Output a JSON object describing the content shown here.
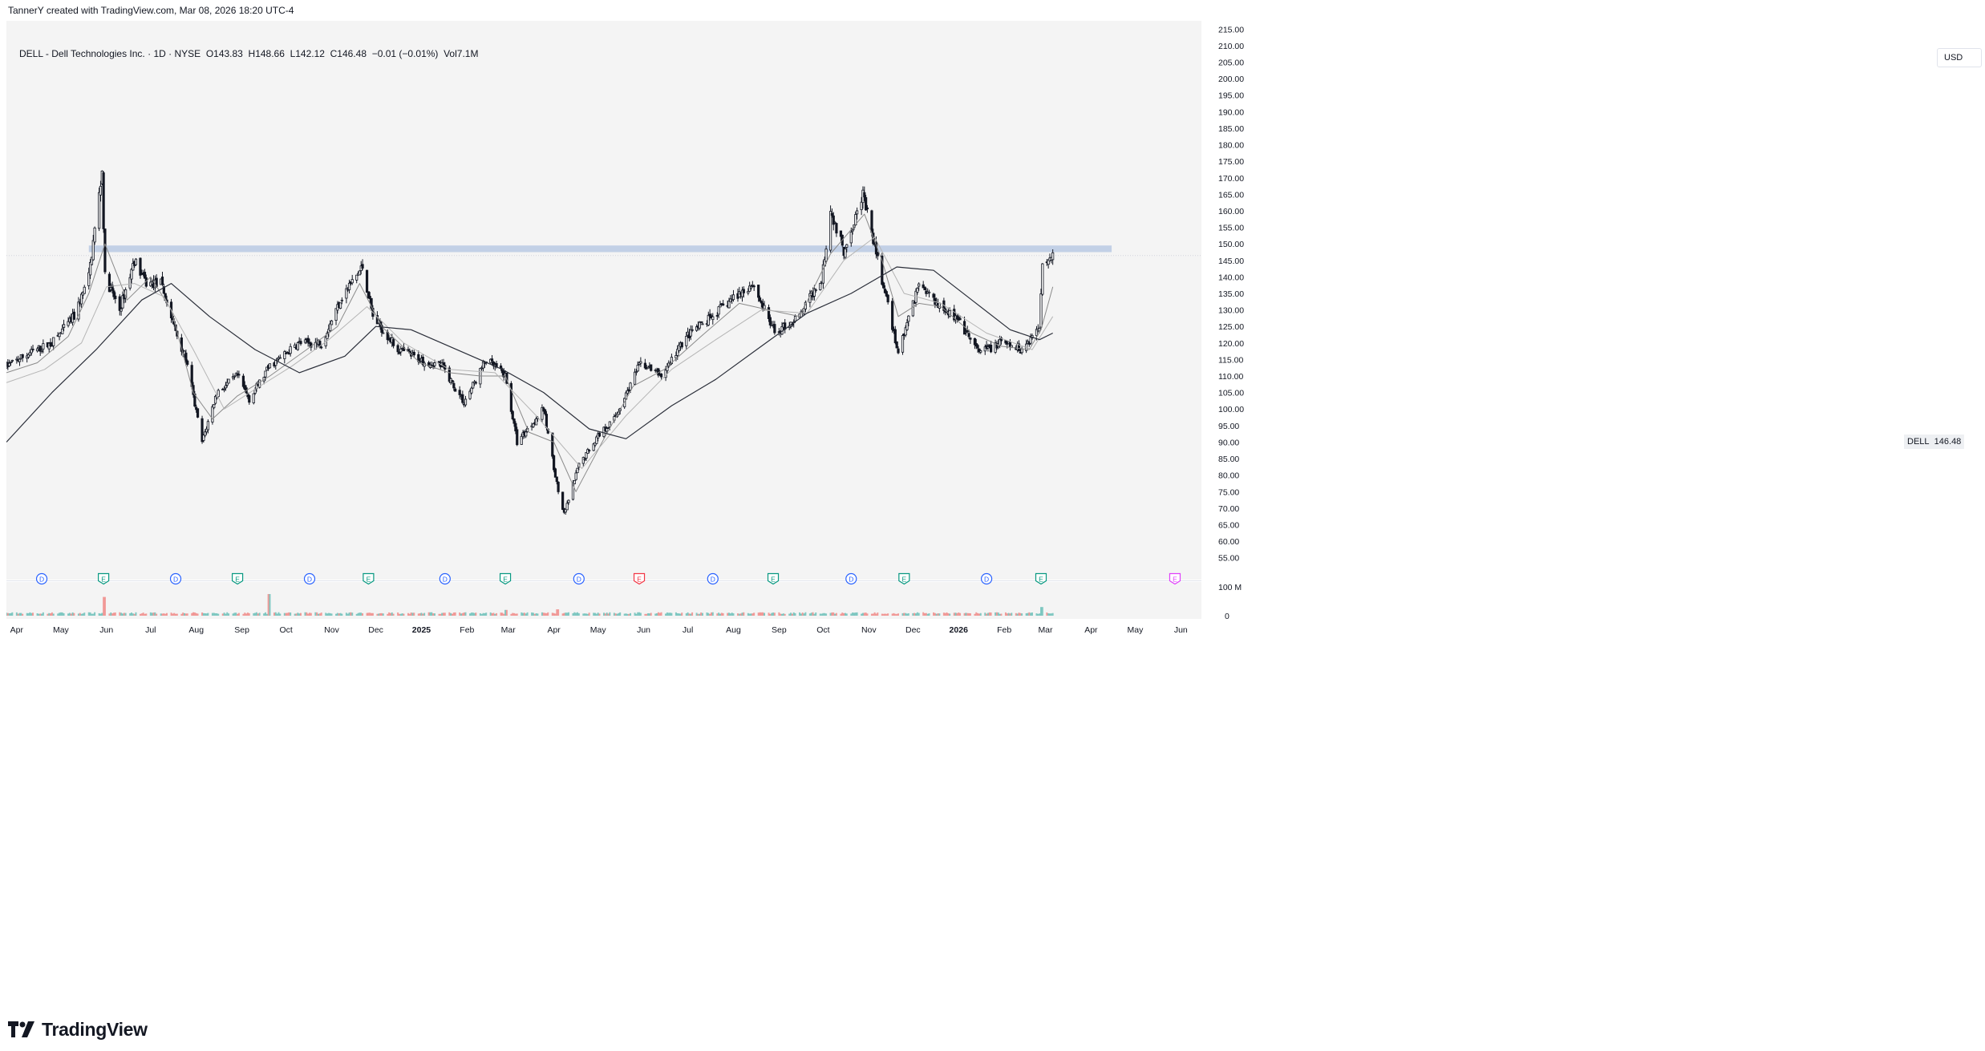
{
  "header": {
    "credit": "TannerY created with TradingView.com, Mar 08, 2026 18:20 UTC-4"
  },
  "legend": {
    "symbol": "DELL",
    "name": "Dell Technologies Inc.",
    "interval": "1D",
    "exchange": "NYSE",
    "open": "O143.83",
    "high": "H148.66",
    "low": "L142.12",
    "close": "C146.48",
    "change": "−0.01 (−0.01%)",
    "volume": "Vol7.1M",
    "separator": " · ",
    "dash": " - "
  },
  "price_axis": {
    "currency": "USD",
    "last_symbol": "DELL",
    "last_price": "146.48"
  },
  "volume_axis": {
    "top_label": "100 M",
    "bottom_label": "0"
  },
  "brand": {
    "name": "TradingView",
    "icon": "tradingview-logo-icon"
  },
  "colors": {
    "background": "#f4f4f4",
    "candle": "#131722",
    "ma_fast": "#8a8a8a",
    "ma_mid": "#b5b5b5",
    "ma_slow": "#2a2e39",
    "resistance_band": "#b8c9e3",
    "dividend": "#2962ff",
    "earnings": "#089981",
    "earnings_miss": "#f23645",
    "earnings_future": "#e040fb"
  },
  "chart_data": {
    "type": "candlestick",
    "title": "DELL · Dell Technologies Inc. · 1D · NYSE",
    "x_ticks": [
      "Apr",
      "May",
      "Jun",
      "Jul",
      "Aug",
      "Sep",
      "Oct",
      "Nov",
      "Dec",
      "2025",
      "Feb",
      "Mar",
      "Apr",
      "May",
      "Jun",
      "Jul",
      "Aug",
      "Sep",
      "Oct",
      "Nov",
      "Dec",
      "2026",
      "Feb",
      "Mar",
      "Apr",
      "May",
      "Jun"
    ],
    "y_ticks": [
      "55.00",
      "60.00",
      "65.00",
      "70.00",
      "75.00",
      "80.00",
      "85.00",
      "90.00",
      "95.00",
      "100.00",
      "105.00",
      "110.00",
      "115.00",
      "120.00",
      "125.00",
      "130.00",
      "135.00",
      "140.00",
      "145.00",
      "150.00",
      "155.00",
      "160.00",
      "165.00",
      "170.00",
      "175.00",
      "180.00",
      "185.00",
      "190.00",
      "195.00",
      "200.00",
      "205.00",
      "210.00",
      "215.00"
    ],
    "ylim": [
      52.5,
      217.5
    ],
    "x_range": [
      "2024-03-25",
      "2026-06-15"
    ],
    "resistance_zone": [
      147.5,
      149.5
    ],
    "series": [
      {
        "name": "DELL",
        "approx_price_path": [
          [
            "2024-03-25",
            113
          ],
          [
            "2024-04-10",
            117
          ],
          [
            "2024-04-25",
            120
          ],
          [
            "2024-05-10",
            128
          ],
          [
            "2024-05-20",
            140
          ],
          [
            "2024-05-29",
            172
          ],
          [
            "2024-05-31",
            140
          ],
          [
            "2024-06-10",
            130
          ],
          [
            "2024-06-20",
            145
          ],
          [
            "2024-06-28",
            138
          ],
          [
            "2024-07-08",
            138
          ],
          [
            "2024-07-17",
            125
          ],
          [
            "2024-07-25",
            115
          ],
          [
            "2024-08-05",
            90
          ],
          [
            "2024-08-15",
            105
          ],
          [
            "2024-08-29",
            110
          ],
          [
            "2024-09-06",
            103
          ],
          [
            "2024-09-20",
            113
          ],
          [
            "2024-10-10",
            120
          ],
          [
            "2024-10-25",
            120
          ],
          [
            "2024-11-08",
            134
          ],
          [
            "2024-11-22",
            143
          ],
          [
            "2024-11-29",
            128
          ],
          [
            "2024-12-16",
            118
          ],
          [
            "2024-12-31",
            115
          ],
          [
            "2025-01-15",
            113
          ],
          [
            "2025-01-30",
            102
          ],
          [
            "2025-02-14",
            115
          ],
          [
            "2025-02-27",
            110
          ],
          [
            "2025-03-07",
            90
          ],
          [
            "2025-03-25",
            100
          ],
          [
            "2025-04-04",
            75
          ],
          [
            "2025-04-08",
            68
          ],
          [
            "2025-04-18",
            83
          ],
          [
            "2025-05-01",
            92
          ],
          [
            "2025-05-12",
            97
          ],
          [
            "2025-05-30",
            114
          ],
          [
            "2025-06-13",
            110
          ],
          [
            "2025-06-30",
            122
          ],
          [
            "2025-07-15",
            127
          ],
          [
            "2025-07-30",
            133
          ],
          [
            "2025-08-14",
            138
          ],
          [
            "2025-08-29",
            123
          ],
          [
            "2025-09-15",
            128
          ],
          [
            "2025-09-30",
            140
          ],
          [
            "2025-10-06",
            160
          ],
          [
            "2025-10-15",
            148
          ],
          [
            "2025-10-28",
            165
          ],
          [
            "2025-11-07",
            145
          ],
          [
            "2025-11-21",
            117
          ],
          [
            "2025-12-05",
            138
          ],
          [
            "2025-12-16",
            133
          ],
          [
            "2025-12-31",
            127
          ],
          [
            "2026-01-15",
            117
          ],
          [
            "2026-01-30",
            120
          ],
          [
            "2026-02-13",
            118
          ],
          [
            "2026-02-25",
            125
          ],
          [
            "2026-02-27",
            145
          ],
          [
            "2026-03-06",
            146.48
          ]
        ]
      }
    ],
    "moving_averages": [
      {
        "approx_path": [
          [
            "2024-03-25",
            111
          ],
          [
            "2024-04-15",
            114
          ],
          [
            "2024-05-06",
            122
          ],
          [
            "2024-05-20",
            135
          ],
          [
            "2024-05-31",
            150
          ],
          [
            "2024-06-15",
            133
          ],
          [
            "2024-07-01",
            140
          ],
          [
            "2024-07-15",
            130
          ],
          [
            "2024-07-30",
            105
          ],
          [
            "2024-08-12",
            97
          ],
          [
            "2024-08-29",
            104
          ],
          [
            "2024-09-20",
            110
          ],
          [
            "2024-10-15",
            118
          ],
          [
            "2024-11-05",
            125
          ],
          [
            "2024-11-20",
            138
          ],
          [
            "2024-12-05",
            125
          ],
          [
            "2024-12-31",
            114
          ],
          [
            "2025-01-20",
            111
          ],
          [
            "2025-02-10",
            110
          ],
          [
            "2025-02-27",
            110
          ],
          [
            "2025-03-15",
            93
          ],
          [
            "2025-04-01",
            90
          ],
          [
            "2025-04-16",
            75
          ],
          [
            "2025-05-05",
            91
          ],
          [
            "2025-05-25",
            107
          ],
          [
            "2025-06-15",
            112
          ],
          [
            "2025-07-10",
            122
          ],
          [
            "2025-08-05",
            132
          ],
          [
            "2025-08-25",
            130
          ],
          [
            "2025-09-15",
            128
          ],
          [
            "2025-10-06",
            147
          ],
          [
            "2025-10-29",
            159
          ],
          [
            "2025-11-10",
            145
          ],
          [
            "2025-11-21",
            128
          ],
          [
            "2025-12-05",
            132
          ],
          [
            "2025-12-20",
            131
          ],
          [
            "2026-01-10",
            123
          ],
          [
            "2026-01-30",
            119
          ],
          [
            "2026-02-18",
            118
          ],
          [
            "2026-02-26",
            124
          ],
          [
            "2026-03-06",
            137
          ]
        ]
      },
      {
        "approx_path": [
          [
            "2024-03-25",
            108
          ],
          [
            "2024-04-20",
            112
          ],
          [
            "2024-05-15",
            120
          ],
          [
            "2024-06-01",
            137
          ],
          [
            "2024-06-20",
            138
          ],
          [
            "2024-07-10",
            134
          ],
          [
            "2024-07-30",
            118
          ],
          [
            "2024-08-20",
            100
          ],
          [
            "2024-09-10",
            106
          ],
          [
            "2024-10-05",
            113
          ],
          [
            "2024-10-30",
            121
          ],
          [
            "2024-11-25",
            131
          ],
          [
            "2024-12-20",
            120
          ],
          [
            "2025-01-20",
            112
          ],
          [
            "2025-02-20",
            111
          ],
          [
            "2025-03-20",
            98
          ],
          [
            "2025-04-20",
            82
          ],
          [
            "2025-05-20",
            98
          ],
          [
            "2025-06-20",
            112
          ],
          [
            "2025-07-20",
            121
          ],
          [
            "2025-08-20",
            130
          ],
          [
            "2025-09-20",
            129
          ],
          [
            "2025-10-15",
            145
          ],
          [
            "2025-11-05",
            152
          ],
          [
            "2025-11-25",
            135
          ],
          [
            "2025-12-20",
            132
          ],
          [
            "2026-01-20",
            123
          ],
          [
            "2026-02-20",
            118
          ],
          [
            "2026-03-06",
            128
          ]
        ]
      },
      {
        "approx_path": [
          [
            "2024-03-25",
            90
          ],
          [
            "2024-04-25",
            105
          ],
          [
            "2024-05-25",
            118
          ],
          [
            "2024-06-25",
            133
          ],
          [
            "2024-07-15",
            138
          ],
          [
            "2024-08-10",
            128
          ],
          [
            "2024-09-10",
            118
          ],
          [
            "2024-10-10",
            111
          ],
          [
            "2024-11-10",
            116
          ],
          [
            "2024-12-01",
            125
          ],
          [
            "2024-12-25",
            124
          ],
          [
            "2025-01-25",
            118
          ],
          [
            "2025-02-25",
            112
          ],
          [
            "2025-03-25",
            105
          ],
          [
            "2025-04-25",
            94
          ],
          [
            "2025-05-20",
            91
          ],
          [
            "2025-06-20",
            101
          ],
          [
            "2025-07-20",
            109
          ],
          [
            "2025-08-20",
            119
          ],
          [
            "2025-09-20",
            129
          ],
          [
            "2025-10-20",
            135
          ],
          [
            "2025-11-20",
            143
          ],
          [
            "2025-12-15",
            142
          ],
          [
            "2026-01-10",
            133
          ],
          [
            "2026-02-05",
            124
          ],
          [
            "2026-02-25",
            121
          ],
          [
            "2026-03-06",
            123
          ]
        ]
      }
    ],
    "events": [
      {
        "type": "D",
        "date": "2024-04-18"
      },
      {
        "type": "E",
        "date": "2024-05-30"
      },
      {
        "type": "D",
        "date": "2024-07-18"
      },
      {
        "type": "E",
        "date": "2024-08-29"
      },
      {
        "type": "D",
        "date": "2024-10-17"
      },
      {
        "type": "E",
        "date": "2024-11-26"
      },
      {
        "type": "D",
        "date": "2025-01-17"
      },
      {
        "type": "E",
        "date": "2025-02-27"
      },
      {
        "type": "D",
        "date": "2025-04-18"
      },
      {
        "type": "E",
        "date": "2025-05-29",
        "miss": true
      },
      {
        "type": "D",
        "date": "2025-07-18"
      },
      {
        "type": "E",
        "date": "2025-08-28"
      },
      {
        "type": "D",
        "date": "2025-10-20"
      },
      {
        "type": "E",
        "date": "2025-11-25"
      },
      {
        "type": "D",
        "date": "2026-01-20"
      },
      {
        "type": "E",
        "date": "2026-02-26"
      },
      {
        "type": "E",
        "date": "2026-05-28",
        "future": true
      }
    ],
    "volume": {
      "ylim_millions": [
        0,
        100
      ],
      "spikes": [
        {
          "date": "2024-05-31",
          "value_millions": 65
        },
        {
          "date": "2024-09-20",
          "value_millions": 75
        },
        {
          "date": "2025-02-28",
          "value_millions": 20
        },
        {
          "date": "2025-04-04",
          "value_millions": 22
        },
        {
          "date": "2026-02-27",
          "value_millions": 30
        }
      ]
    }
  }
}
